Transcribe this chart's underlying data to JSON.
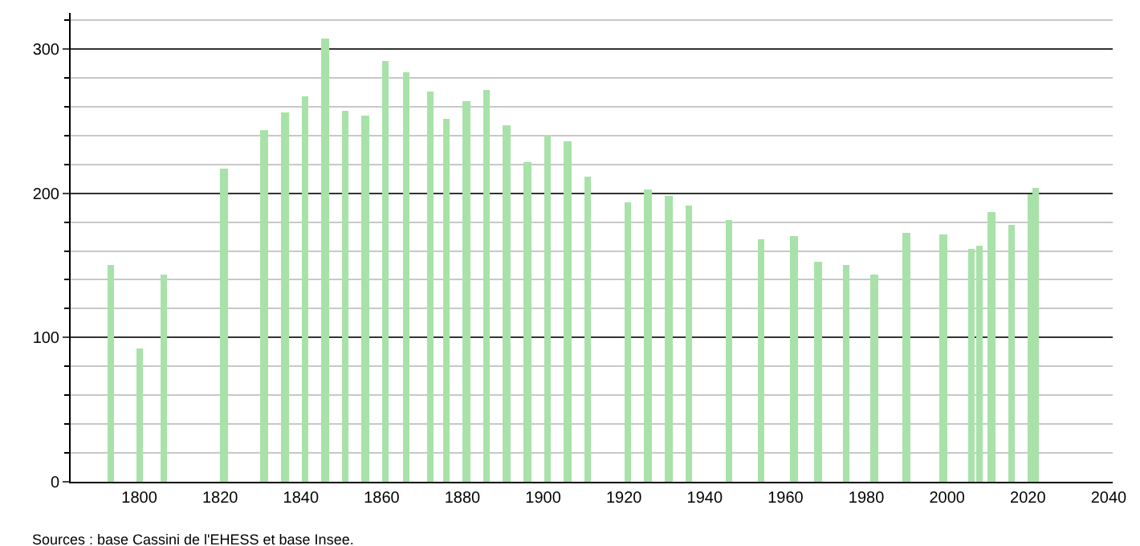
{
  "chart_data": {
    "type": "bar",
    "x": [
      1793,
      1800,
      1806,
      1821,
      1831,
      1836,
      1841,
      1846,
      1851,
      1856,
      1861,
      1866,
      1872,
      1876,
      1881,
      1886,
      1891,
      1896,
      1901,
      1906,
      1911,
      1921,
      1926,
      1931,
      1936,
      1946,
      1954,
      1962,
      1968,
      1975,
      1982,
      1990,
      1999,
      2006,
      2008,
      2011,
      2016,
      2021,
      2022
    ],
    "values": [
      150,
      92,
      144,
      217,
      244,
      256,
      267,
      307,
      257,
      254,
      292,
      284,
      271,
      251,
      264,
      272,
      247,
      221,
      240,
      236,
      211,
      194,
      203,
      198,
      192,
      181,
      168,
      170,
      152,
      150,
      144,
      173,
      171,
      161,
      164,
      187,
      178,
      199,
      204
    ],
    "color": "#a8e2a8",
    "xlim": [
      1783,
      2041
    ],
    "xticks": [
      1800,
      1820,
      1840,
      1860,
      1880,
      1900,
      1920,
      1940,
      1960,
      1980,
      2000,
      2020,
      2040
    ],
    "ylim": [
      0,
      325
    ],
    "yticks": [
      0,
      100,
      200,
      300
    ],
    "grid": "y",
    "annotations": [
      "Sources : base Cassini de l'EHESS et base Insee."
    ]
  }
}
